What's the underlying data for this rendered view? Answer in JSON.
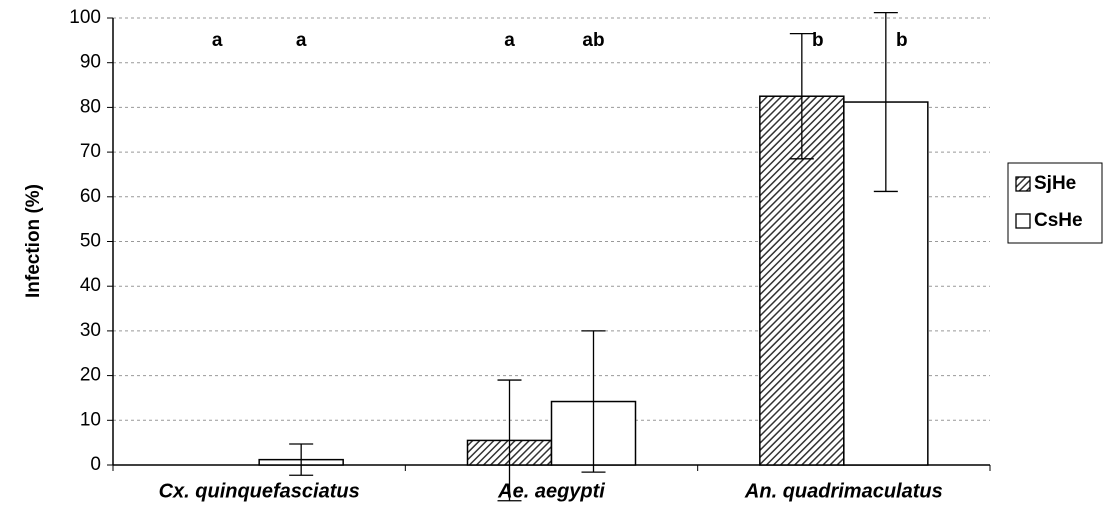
{
  "chart_data": {
    "type": "bar",
    "y_label": "Infection (%)",
    "categories": [
      "Cx. quinquefasciatus",
      "Ae. aegypti",
      "An. quadrimaculatus"
    ],
    "series": [
      {
        "name": "SjHe",
        "color": "hatch",
        "values": [
          0,
          5.5,
          82.5
        ],
        "errors": [
          0,
          13.5,
          14
        ],
        "letters": [
          "a",
          "a",
          "b"
        ]
      },
      {
        "name": "CsHe",
        "color": "#ffffff",
        "values": [
          1.2,
          14.2,
          81.2
        ],
        "errors": [
          3.5,
          15.8,
          20
        ],
        "letters": [
          "a",
          "ab",
          "b"
        ]
      }
    ],
    "ylim": [
      0,
      100
    ],
    "yticks": [
      0,
      10,
      20,
      30,
      40,
      50,
      60,
      70,
      80,
      90,
      100
    ],
    "grid": true,
    "legend": "right"
  }
}
